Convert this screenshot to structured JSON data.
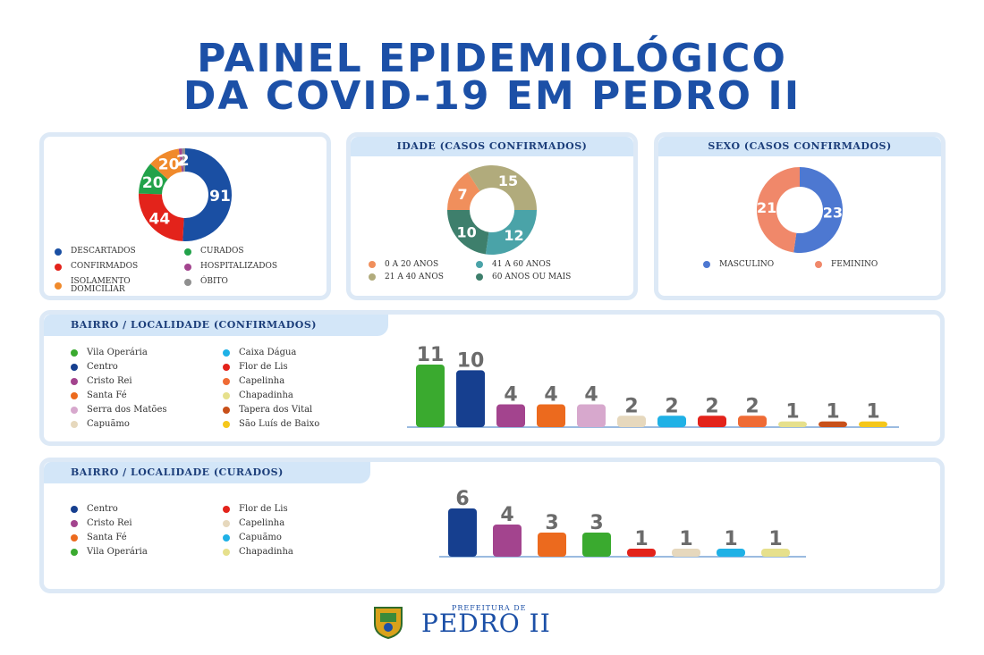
{
  "title_line1": "PAINEL EPIDEMIOLÓGICO",
  "title_line2": "DA COVID-19 EM PEDRO II",
  "footer": {
    "small": "PREFEITURA DE",
    "big": "PEDRO II"
  },
  "chart_data": [
    {
      "type": "pie",
      "title": "",
      "categories": [
        "DESCARTADOS",
        "CONFIRMADOS",
        "CURADOS",
        "ISOLAMENTO DOMICILIAR",
        "HOSPITALIZADOS",
        "ÓBITO"
      ],
      "values": [
        91,
        44,
        20,
        20,
        2,
        2
      ],
      "colors": [
        "#1a4fa3",
        "#e3231b",
        "#22a24a",
        "#f08a2c",
        "#a3448e",
        "#8f8f8f"
      ],
      "legend_placement": "bottom"
    },
    {
      "type": "pie",
      "title": "IDADE (CASOS CONFIRMADOS)",
      "categories": [
        "0 A 20 ANOS",
        "21 A 40 ANOS",
        "41 A 60 ANOS",
        "60 ANOS OU MAIS"
      ],
      "values": [
        7,
        15,
        12,
        10
      ],
      "colors": [
        "#f08f5c",
        "#b1ab7c",
        "#4aa3a8",
        "#3e7f6c"
      ],
      "legend_placement": "bottom"
    },
    {
      "type": "pie",
      "title": "SEXO (CASOS CONFIRMADOS)",
      "categories": [
        "MASCULINO",
        "FEMININO"
      ],
      "values": [
        23,
        21
      ],
      "colors": [
        "#4d78d1",
        "#f0886a"
      ],
      "legend_placement": "bottom"
    },
    {
      "type": "bar",
      "title": "BAIRRO / LOCALIDADE (CONFIRMADOS)",
      "categories": [
        "Vila Operária",
        "Centro",
        "Cristo Rei",
        "Santa Fé",
        "Serra dos Matões",
        "Capuãmo",
        "Caixa Dágua",
        "Flor de Lis",
        "Capelinha",
        "Chapadinha",
        "Tapera dos Vital",
        "São Luís de Baixo"
      ],
      "values": [
        11,
        10,
        4,
        4,
        4,
        2,
        2,
        2,
        2,
        1,
        1,
        1
      ],
      "colors": [
        "#3aaa2f",
        "#163f8f",
        "#a3448e",
        "#ec6a1e",
        "#d7a8cd",
        "#e6d8bd",
        "#1fb1e6",
        "#e3231b",
        "#ef6b35",
        "#e6e08c",
        "#c8501a",
        "#f5c71a"
      ],
      "legend_placement": "left"
    },
    {
      "type": "bar",
      "title": "BAIRRO / LOCALIDADE (CURADOS)",
      "categories": [
        "Centro",
        "Cristo Rei",
        "Santa Fé",
        "Vila Operária",
        "Flor de Lis",
        "Capelinha",
        "Capuãmo",
        "Chapadinha"
      ],
      "values": [
        6,
        4,
        3,
        3,
        1,
        1,
        1,
        1
      ],
      "colors": [
        "#163f8f",
        "#a3448e",
        "#ec6a1e",
        "#3aaa2f",
        "#e3231b",
        "#e6d8bd",
        "#1fb1e6",
        "#e6e08c"
      ],
      "legend_placement": "left"
    }
  ]
}
